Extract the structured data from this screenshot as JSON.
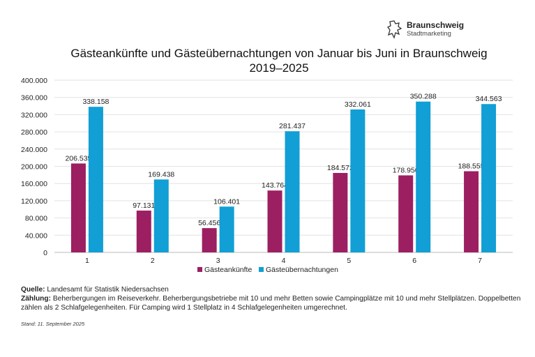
{
  "logo": {
    "name": "Braunschweig",
    "subtitle": "Stadtmarketing"
  },
  "chart_data": {
    "type": "bar",
    "title": "Gästeankünfte und Gästeübernachtungen von Januar bis Juni in Braunschweig 2019–2025",
    "categories": [
      "1",
      "2",
      "3",
      "4",
      "5",
      "6",
      "7"
    ],
    "series": [
      {
        "name": "Gästeankünfte",
        "color": "#9c1f62",
        "values": [
          206535,
          97131,
          56456,
          143764,
          184572,
          178950,
          188555
        ],
        "labels": [
          "206.535",
          "97.131",
          "56.456",
          "143.764",
          "184.572",
          "178.950",
          "188.555"
        ]
      },
      {
        "name": "Gästeübernachtungen",
        "color": "#119fd5",
        "values": [
          338158,
          169438,
          106401,
          281437,
          332061,
          350288,
          344563
        ],
        "labels": [
          "338.158",
          "169.438",
          "106.401",
          "281.437",
          "332.061",
          "350.288",
          "344.563"
        ]
      }
    ],
    "ylim": [
      0,
      400000
    ],
    "yticks": [
      "0",
      "40.000",
      "80.000",
      "120.000",
      "160.000",
      "200.000",
      "240.000",
      "280.000",
      "320.000",
      "360.000",
      "400.000"
    ],
    "grid": true,
    "legend": "bottom"
  },
  "notes": {
    "source_label": "Quelle:",
    "source_text": "Landesamt für Statistik Niedersachsen",
    "count_label": "Zählung:",
    "count_text": "Beherbergungen im Reiseverkehr. Beherbergungsbetriebe mit 10 und mehr Betten sowie Campingplätze mit 10 und mehr Stellplätzen. Doppelbetten zählen als 2 Schlafgelegenheiten. Für Camping wird 1 Stellplatz in 4 Schlafgelegenheiten umgerechnet.",
    "stand": "Stand: 11. September 2025"
  }
}
